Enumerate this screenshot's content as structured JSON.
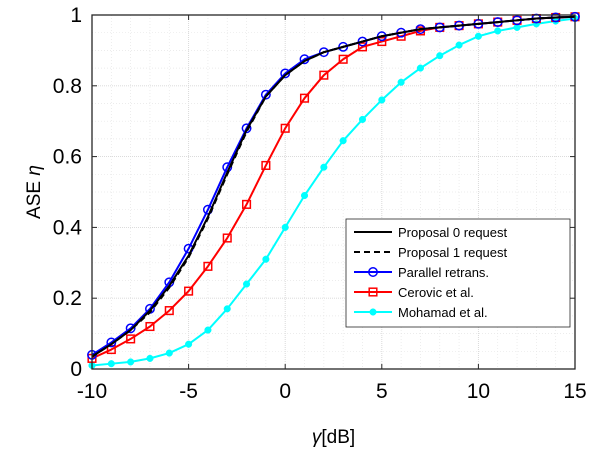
{
  "chart_data": {
    "type": "line",
    "title": "",
    "xlabel_prefix": "γ",
    "xlabel_suffix": "[dB]",
    "ylabel_prefix": "ASE ",
    "ylabel_symbol": "η",
    "xlim": [
      -10,
      15
    ],
    "ylim": [
      0,
      1
    ],
    "xticks": [
      -10,
      -5,
      0,
      5,
      10,
      15
    ],
    "xtick_labels": [
      "-10",
      "-5",
      "0",
      "5",
      "10",
      "15"
    ],
    "yticks": [
      0,
      0.2,
      0.4,
      0.6,
      0.8,
      1
    ],
    "ytick_labels": [
      "0",
      "0.2",
      "0.4",
      "0.6",
      "0.8",
      "1"
    ],
    "grid": "on (major and minor, dotted)",
    "legend_position": "lower right",
    "x": [
      -10,
      -9,
      -8,
      -7,
      -6,
      -5,
      -4,
      -3,
      -2,
      -1,
      0,
      1,
      2,
      3,
      4,
      5,
      6,
      7,
      8,
      9,
      10,
      11,
      12,
      13,
      14,
      15
    ],
    "series": [
      {
        "name": "Proposal 0 request",
        "color": "#000000",
        "line": "solid",
        "marker": "none",
        "values": [
          0.035,
          0.07,
          0.11,
          0.165,
          0.235,
          0.32,
          0.43,
          0.555,
          0.675,
          0.77,
          0.83,
          0.87,
          0.895,
          0.91,
          0.925,
          0.94,
          0.95,
          0.96,
          0.965,
          0.97,
          0.975,
          0.98,
          0.985,
          0.99,
          0.993,
          0.995
        ]
      },
      {
        "name": "Proposal 1 request",
        "color": "#000000",
        "line": "dashed",
        "marker": "none",
        "values": [
          0.035,
          0.07,
          0.11,
          0.16,
          0.23,
          0.315,
          0.425,
          0.55,
          0.67,
          0.77,
          0.83,
          0.87,
          0.895,
          0.91,
          0.925,
          0.94,
          0.95,
          0.96,
          0.965,
          0.97,
          0.975,
          0.98,
          0.985,
          0.99,
          0.993,
          0.995
        ]
      },
      {
        "name": "Parallel retrans.",
        "color": "#0000ff",
        "line": "solid",
        "marker": "circle",
        "values": [
          0.04,
          0.075,
          0.115,
          0.17,
          0.245,
          0.34,
          0.45,
          0.57,
          0.68,
          0.775,
          0.835,
          0.875,
          0.895,
          0.91,
          0.925,
          0.94,
          0.95,
          0.96,
          0.965,
          0.97,
          0.975,
          0.98,
          0.985,
          0.99,
          0.993,
          0.995
        ]
      },
      {
        "name": "Cerovic et al.",
        "color": "#ff0000",
        "line": "solid",
        "marker": "square",
        "values": [
          0.03,
          0.055,
          0.085,
          0.12,
          0.165,
          0.22,
          0.29,
          0.37,
          0.465,
          0.575,
          0.68,
          0.765,
          0.83,
          0.875,
          0.91,
          0.925,
          0.94,
          0.955,
          0.965,
          0.97,
          0.975,
          0.98,
          0.985,
          0.99,
          0.993,
          0.995
        ]
      },
      {
        "name": "Mohamad et al.",
        "color": "#00ffff",
        "line": "solid",
        "marker": "dot",
        "values": [
          0.01,
          0.015,
          0.02,
          0.03,
          0.045,
          0.07,
          0.11,
          0.17,
          0.24,
          0.31,
          0.4,
          0.49,
          0.57,
          0.645,
          0.705,
          0.76,
          0.81,
          0.85,
          0.885,
          0.915,
          0.94,
          0.955,
          0.965,
          0.975,
          0.983,
          0.99
        ]
      }
    ]
  }
}
